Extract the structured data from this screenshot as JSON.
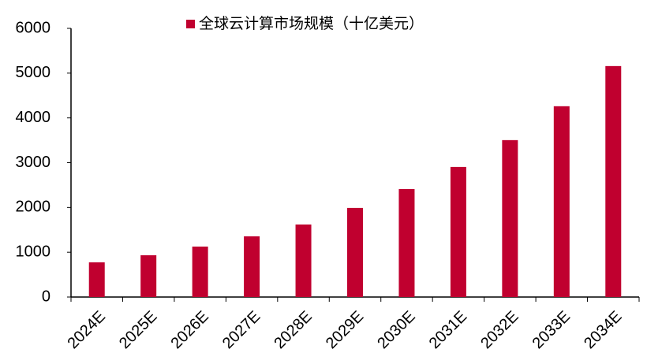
{
  "chart_data": {
    "type": "bar",
    "categories": [
      "2024E",
      "2025E",
      "2026E",
      "2027E",
      "2028E",
      "2029E",
      "2030E",
      "2031E",
      "2032E",
      "2033E",
      "2034E"
    ],
    "series": [
      {
        "name": "全球云计算市场规模（十亿美元）",
        "color": "#c0002f",
        "values": [
          775,
          933,
          1127,
          1356,
          1620,
          1990,
          2412,
          2905,
          3504,
          4261,
          5158
        ]
      }
    ],
    "ylim": [
      0,
      6000
    ],
    "yticks": [
      0,
      1000,
      2000,
      3000,
      4000,
      5000,
      6000
    ],
    "grid": false,
    "legend": "top"
  }
}
